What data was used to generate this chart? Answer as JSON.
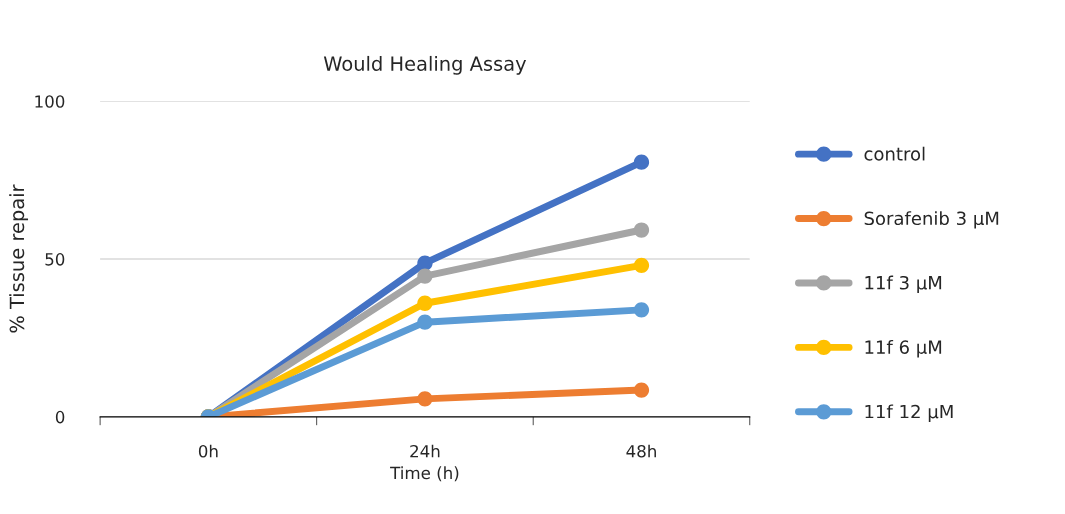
{
  "chart_data": {
    "type": "line",
    "title": "Would Healing Assay",
    "xlabel": "Time (h)",
    "ylabel": "% Tissue repair",
    "categories": [
      "0h",
      "24h",
      "48h"
    ],
    "series": [
      {
        "name": "control",
        "color": "#4472c4",
        "values": [
          0,
          48.7,
          80.7
        ]
      },
      {
        "name": "Sorafenib 3 µM",
        "color": "#ed7d31",
        "values": [
          0,
          5.7,
          8.5
        ]
      },
      {
        "name": "11f 3 µM",
        "color": "#a5a5a5",
        "values": [
          0,
          44.6,
          59.2
        ]
      },
      {
        "name": "11f 6 µM",
        "color": "#ffc000",
        "values": [
          0,
          36,
          48
        ]
      },
      {
        "name": "11f 12 µM",
        "color": "#5b9bd5",
        "values": [
          0,
          30,
          33.9
        ]
      }
    ],
    "ylim": [
      0,
      100
    ],
    "yticks": [
      0,
      50,
      100
    ],
    "grid": "y",
    "legend": "right",
    "marker": "circle",
    "line_style": "solid"
  }
}
